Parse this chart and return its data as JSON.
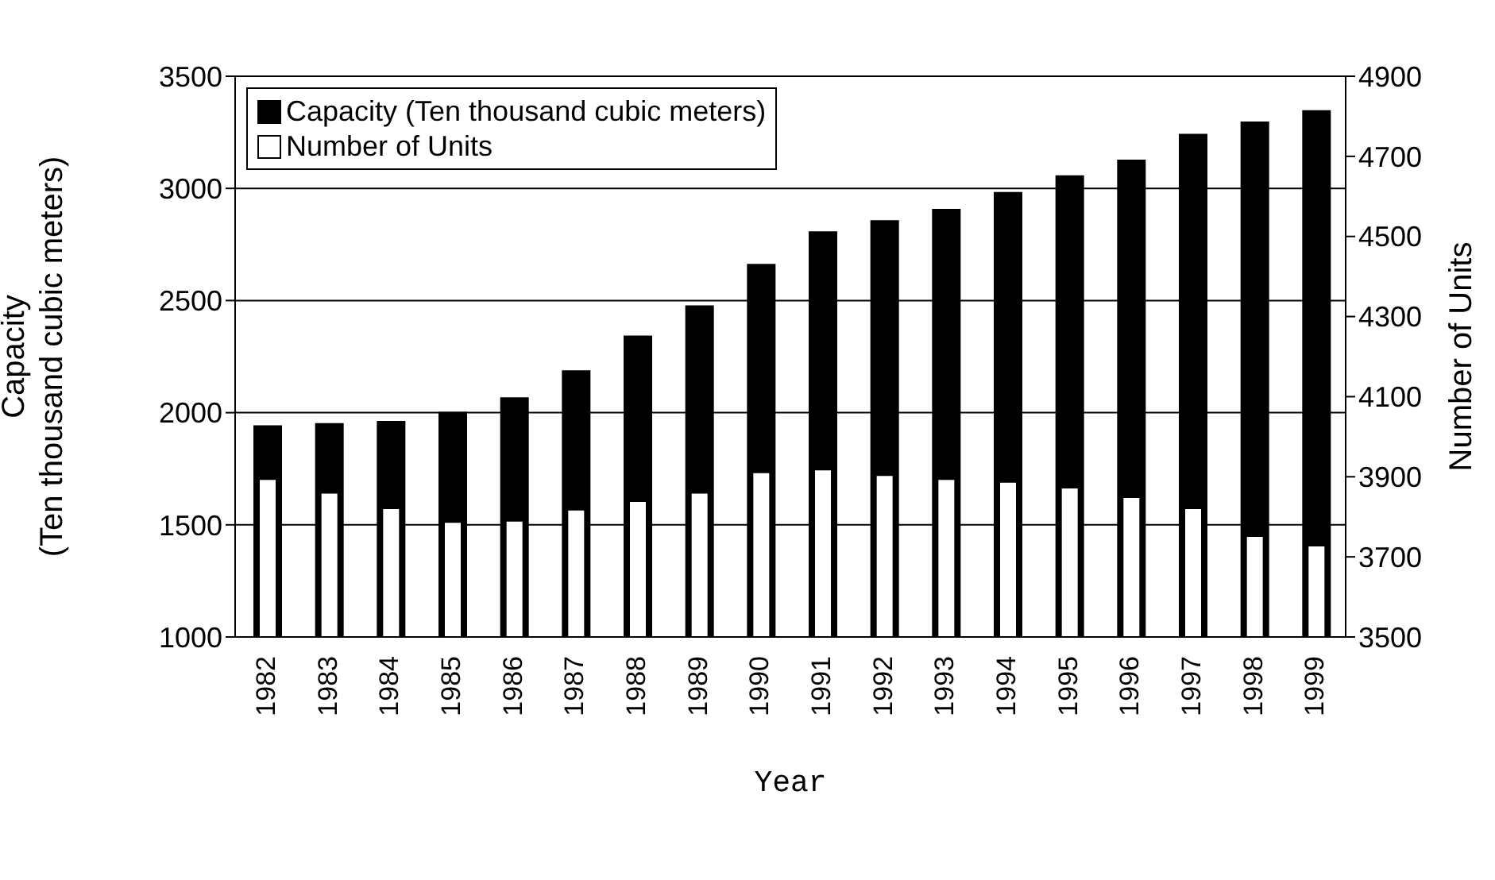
{
  "chart_data": {
    "type": "bar",
    "xlabel": "Year",
    "ylabel": "Capacity\n(Ten thousand cubic meters)",
    "y2label": "Number of Units",
    "categories": [
      "1982",
      "1983",
      "1984",
      "1985",
      "1986",
      "1987",
      "1988",
      "1989",
      "1990",
      "1991",
      "1992",
      "1993",
      "1994",
      "1995",
      "1996",
      "1997",
      "1998",
      "1999"
    ],
    "series": [
      {
        "name": "Capacity (Ten thousand cubic meters)",
        "color": "#000000",
        "values": [
          1940,
          1950,
          1960,
          2000,
          2065,
          2185,
          2340,
          2475,
          2660,
          2805,
          2855,
          2905,
          2980,
          3055,
          3125,
          3240,
          3295,
          3345
        ]
      },
      {
        "name": "Number of Units",
        "color": "#ffffff",
        "axis": "y2",
        "values": [
          3894,
          3860,
          3821,
          3787,
          3790,
          3818,
          3839,
          3860,
          3911,
          3918,
          3904,
          3894,
          3887,
          3873,
          3849,
          3821,
          3752,
          3728
        ]
      }
    ],
    "ylim": [
      1000,
      3500
    ],
    "yticks": [
      1000,
      1500,
      2000,
      2500,
      3000,
      3500
    ],
    "y2lim": [
      3500,
      4900
    ],
    "y2ticks": [
      3500,
      3700,
      3900,
      4100,
      4300,
      4500,
      4700,
      4900
    ],
    "grid": "y",
    "legend": "top left"
  }
}
